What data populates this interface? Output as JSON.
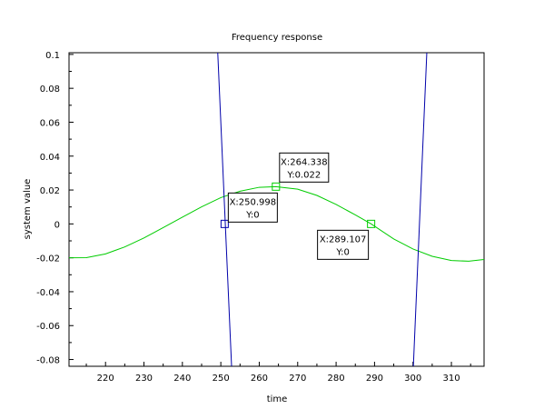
{
  "chart_data": {
    "type": "line",
    "title": "Frequency response",
    "xlabel": "time",
    "ylabel": "system value",
    "xlim": [
      210.5,
      318.5
    ],
    "ylim": [
      -0.084,
      0.101
    ],
    "xticks": [
      220,
      230,
      240,
      250,
      260,
      270,
      280,
      290,
      300,
      310
    ],
    "xtick_labels": [
      "220",
      "230",
      "240",
      "250",
      "260",
      "270",
      "280",
      "290",
      "300",
      "310"
    ],
    "yticks": [
      0.1,
      0.08,
      0.06,
      0.04,
      0.02,
      0,
      -0.02,
      -0.04,
      -0.06,
      -0.08
    ],
    "ytick_labels": [
      "0.1",
      "0.08",
      "0.06",
      "0.04",
      "0.02",
      "0",
      "-0.02",
      "-0.04",
      "-0.06",
      "-0.08"
    ],
    "grid": false,
    "legend": "none",
    "series": [
      {
        "color": "#00cc00",
        "x": [
          210.5,
          215,
          220,
          225,
          230,
          235,
          240,
          245,
          250,
          255,
          260,
          264.338,
          270,
          275,
          280,
          285,
          289.107,
          295,
          300,
          305,
          310,
          314.5,
          318.5
        ],
        "y": [
          -0.02,
          -0.0199,
          -0.0177,
          -0.0136,
          -0.0083,
          -0.0022,
          0.004,
          0.0101,
          0.0155,
          0.0193,
          0.0216,
          0.022,
          0.0205,
          0.0168,
          0.0115,
          0.0053,
          0.0,
          -0.0089,
          -0.0148,
          -0.0191,
          -0.0216,
          -0.022,
          -0.021
        ]
      },
      {
        "color": "#0000aa",
        "segments": [
          {
            "x": [
              249.2,
              252.8
            ],
            "y": [
              0.101,
              -0.084
            ]
          },
          {
            "x": [
              300.1,
              303.6
            ],
            "y": [
              -0.084,
              0.101
            ]
          }
        ]
      }
    ],
    "annotations": [
      {
        "x": 250.998,
        "y": 0,
        "label_x": "X:250.998",
        "label_y": "Y:0",
        "color": "#0000aa"
      },
      {
        "x": 264.338,
        "y": 0.022,
        "label_x": "X:264.338",
        "label_y": "Y:0.022",
        "color": "#00cc00"
      },
      {
        "x": 289.107,
        "y": 0,
        "label_x": "X:289.107",
        "label_y": "Y:0",
        "color": "#00cc00"
      }
    ]
  }
}
